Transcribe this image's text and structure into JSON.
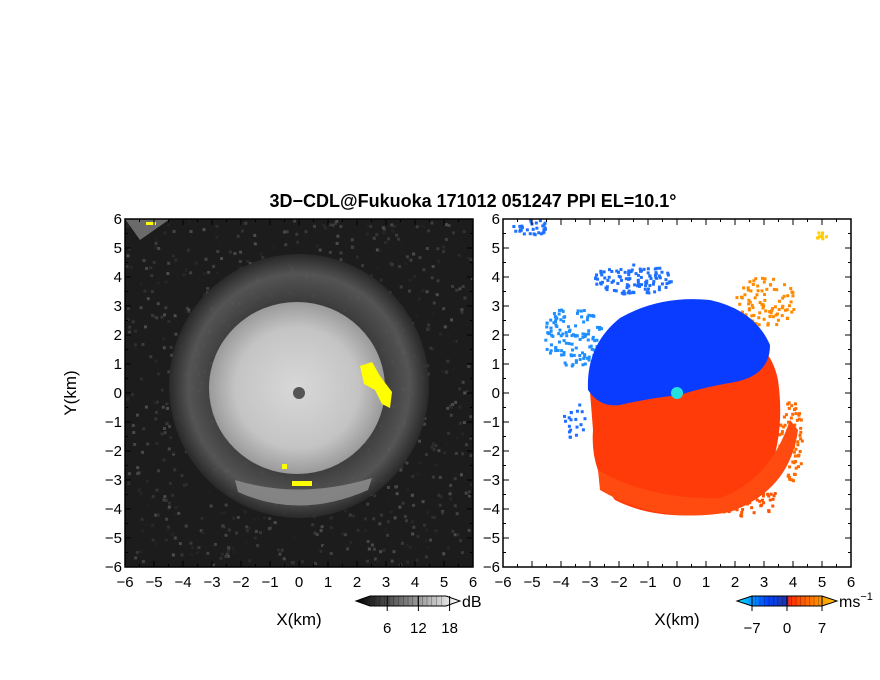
{
  "title": "3D−CDL@Fukuoka 171012 051247 PPI EL=10.1°",
  "chart_data": [
    {
      "type": "heatmap",
      "panel": "reflectivity",
      "xlabel": "X(km)",
      "ylabel": "Y(km)",
      "xlim": [
        -6,
        6
      ],
      "ylim": [
        -6,
        6
      ],
      "x_ticks": [
        "−6",
        "−5",
        "−4",
        "−3",
        "−2",
        "−1",
        "0",
        "1",
        "2",
        "3",
        "4",
        "5",
        "6"
      ],
      "y_ticks": [
        "6",
        "5",
        "4",
        "3",
        "2",
        "1",
        "0",
        "−1",
        "−2",
        "−3",
        "−4",
        "−5",
        "−6"
      ],
      "colorbar": {
        "unit": "dB",
        "ticks": [
          "6",
          "12",
          "18"
        ],
        "tick_values": [
          6,
          12,
          18
        ],
        "range": [
          0,
          20
        ],
        "colors": [
          "#000000",
          "#ffffff"
        ]
      },
      "highlight_color": "#ffff00"
    },
    {
      "type": "heatmap",
      "panel": "radial-velocity",
      "xlabel": "X(km)",
      "xlim": [
        -6,
        6
      ],
      "ylim": [
        -6,
        6
      ],
      "x_ticks": [
        "−6",
        "−5",
        "−4",
        "−3",
        "−2",
        "−1",
        "0",
        "1",
        "2",
        "3",
        "4",
        "5",
        "6"
      ],
      "y_ticks": [
        "6",
        "5",
        "4",
        "3",
        "2",
        "1",
        "0",
        "−1",
        "−2",
        "−3",
        "−4",
        "−5",
        "−6"
      ],
      "colorbar": {
        "unit": "ms",
        "unit_sup": "−1",
        "ticks": [
          "−7",
          "0",
          "7"
        ],
        "tick_values": [
          -7,
          0,
          7
        ],
        "range": [
          -10,
          10
        ],
        "colors": [
          "#00e5ff",
          "#0044ff",
          "#ff2a00",
          "#ffcc00"
        ]
      },
      "center_color": "#22e0e0"
    }
  ]
}
